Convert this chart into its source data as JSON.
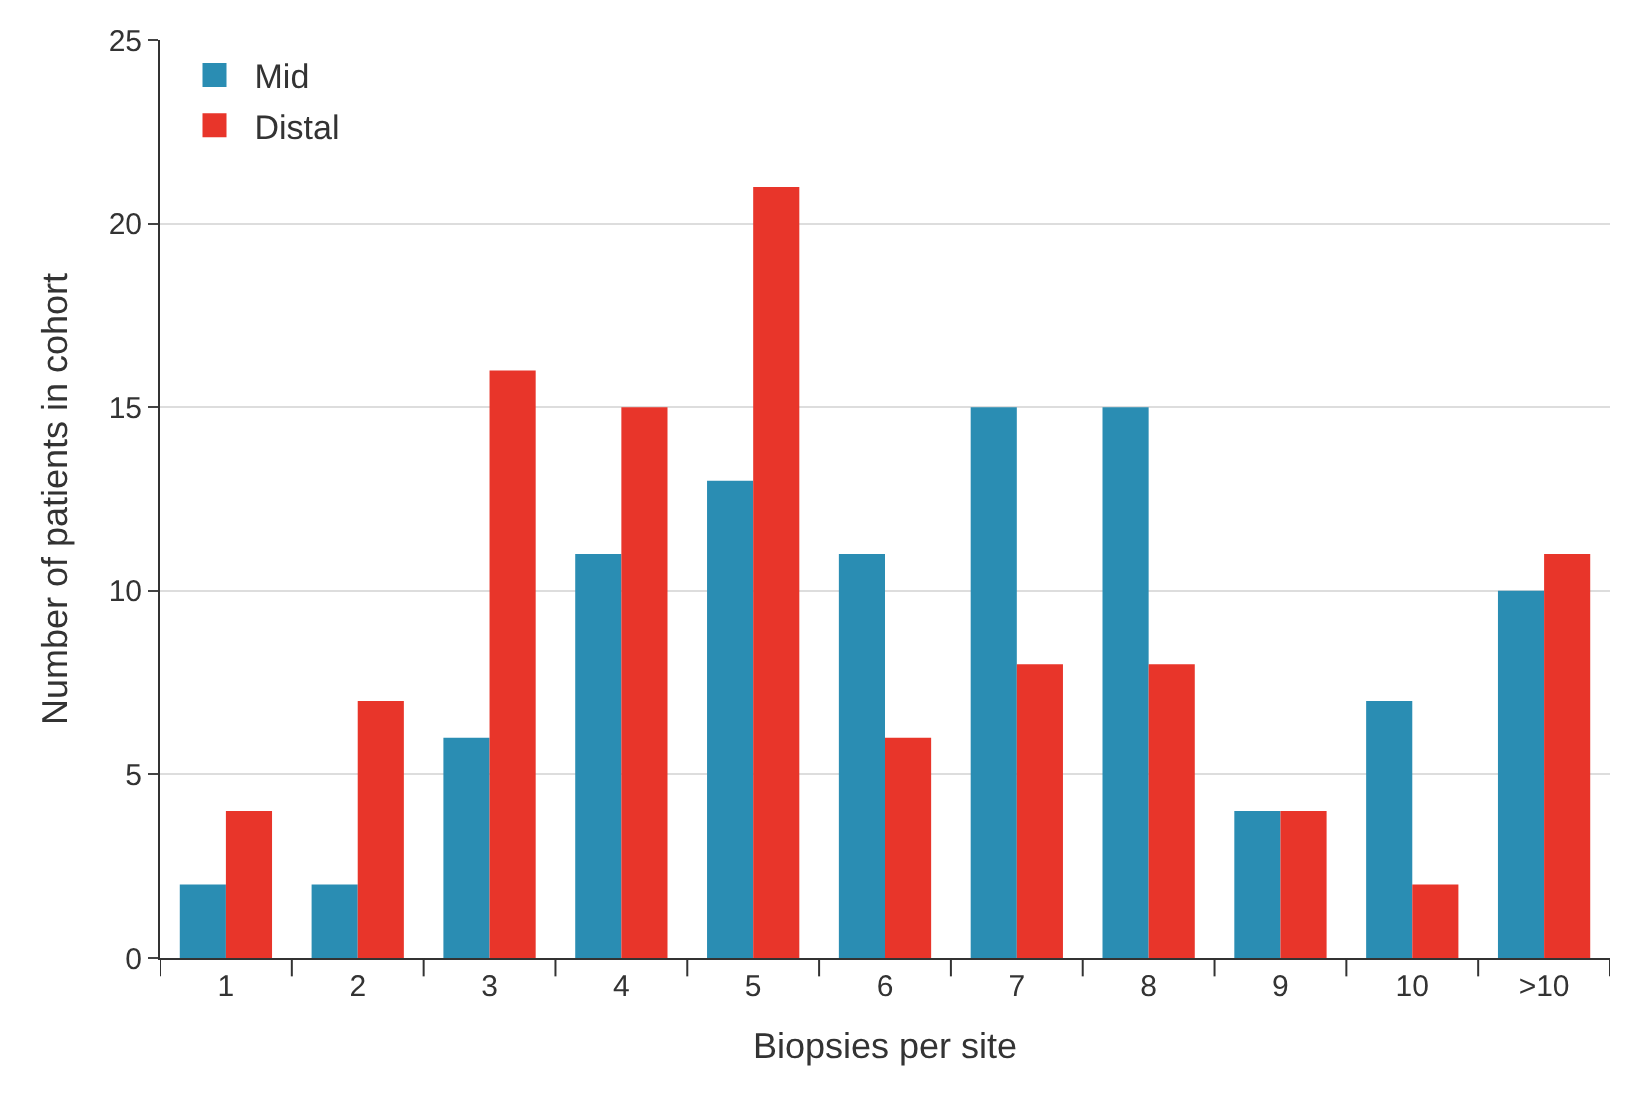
{
  "chart_data": {
    "type": "bar",
    "xlabel": "Biopsies per site",
    "ylabel": "Number of patients in cohort",
    "categories": [
      "1",
      "2",
      "3",
      "4",
      "5",
      "6",
      "7",
      "8",
      "9",
      "10",
      ">10"
    ],
    "series": [
      {
        "name": "Mid",
        "color": "#2a8db3",
        "values": [
          2,
          2,
          6,
          11,
          13,
          11,
          15,
          15,
          4,
          7,
          10
        ]
      },
      {
        "name": "Distal",
        "color": "#e8352a",
        "values": [
          4,
          7,
          16,
          15,
          21,
          6,
          8,
          8,
          4,
          2,
          11
        ]
      }
    ],
    "ylim": [
      0,
      25
    ],
    "yticks": [
      0,
      5,
      10,
      15,
      20,
      25
    ],
    "grid": "y",
    "legend": "top left"
  }
}
